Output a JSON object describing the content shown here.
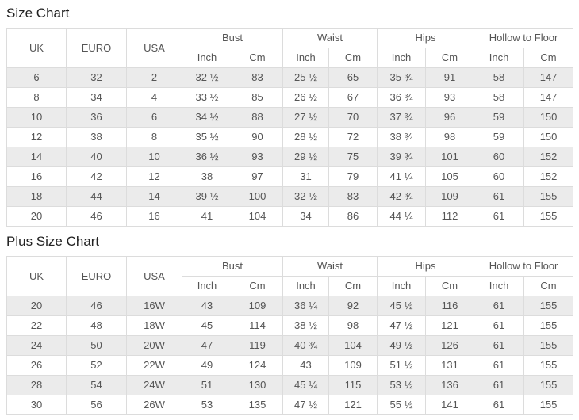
{
  "labels": {
    "uk": "UK",
    "euro": "EURO",
    "usa": "USA",
    "bust": "Bust",
    "waist": "Waist",
    "hips": "Hips",
    "hollow_to_floor": "Hollow to Floor",
    "inch": "Inch",
    "cm": "Cm"
  },
  "colors": {
    "row_alt": "#ebebeb",
    "border": "#dcdcdc",
    "text": "#555555",
    "title": "#222222",
    "background": "#ffffff"
  },
  "tables": [
    {
      "title": "Size Chart",
      "rows": [
        [
          "6",
          "32",
          "2",
          "32 ½",
          "83",
          "25 ½",
          "65",
          "35 ¾",
          "91",
          "58",
          "147"
        ],
        [
          "8",
          "34",
          "4",
          "33 ½",
          "85",
          "26 ½",
          "67",
          "36 ¾",
          "93",
          "58",
          "147"
        ],
        [
          "10",
          "36",
          "6",
          "34 ½",
          "88",
          "27 ½",
          "70",
          "37 ¾",
          "96",
          "59",
          "150"
        ],
        [
          "12",
          "38",
          "8",
          "35 ½",
          "90",
          "28 ½",
          "72",
          "38 ¾",
          "98",
          "59",
          "150"
        ],
        [
          "14",
          "40",
          "10",
          "36 ½",
          "93",
          "29 ½",
          "75",
          "39 ¾",
          "101",
          "60",
          "152"
        ],
        [
          "16",
          "42",
          "12",
          "38",
          "97",
          "31",
          "79",
          "41 ¼",
          "105",
          "60",
          "152"
        ],
        [
          "18",
          "44",
          "14",
          "39 ½",
          "100",
          "32 ½",
          "83",
          "42 ¾",
          "109",
          "61",
          "155"
        ],
        [
          "20",
          "46",
          "16",
          "41",
          "104",
          "34",
          "86",
          "44 ¼",
          "112",
          "61",
          "155"
        ]
      ]
    },
    {
      "title": "Plus Size Chart",
      "rows": [
        [
          "20",
          "46",
          "16W",
          "43",
          "109",
          "36 ¼",
          "92",
          "45 ½",
          "116",
          "61",
          "155"
        ],
        [
          "22",
          "48",
          "18W",
          "45",
          "114",
          "38 ½",
          "98",
          "47 ½",
          "121",
          "61",
          "155"
        ],
        [
          "24",
          "50",
          "20W",
          "47",
          "119",
          "40 ¾",
          "104",
          "49 ½",
          "126",
          "61",
          "155"
        ],
        [
          "26",
          "52",
          "22W",
          "49",
          "124",
          "43",
          "109",
          "51 ½",
          "131",
          "61",
          "155"
        ],
        [
          "28",
          "54",
          "24W",
          "51",
          "130",
          "45 ¼",
          "115",
          "53 ½",
          "136",
          "61",
          "155"
        ],
        [
          "30",
          "56",
          "26W",
          "53",
          "135",
          "47 ½",
          "121",
          "55 ½",
          "141",
          "61",
          "155"
        ]
      ]
    }
  ]
}
